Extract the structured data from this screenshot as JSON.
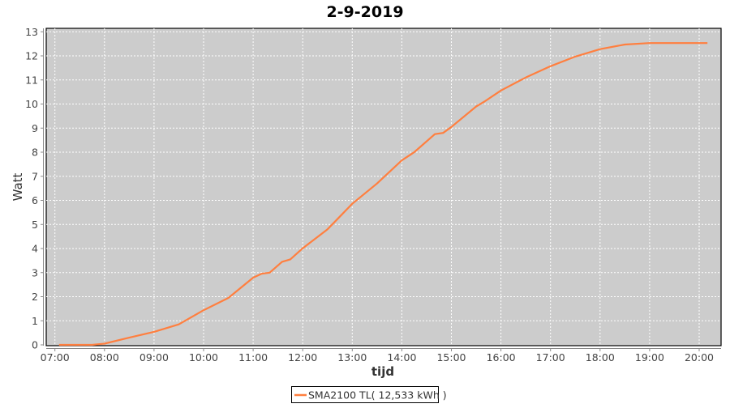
{
  "chart_data": {
    "type": "line",
    "title": "2-9-2019",
    "xlabel": "tijd",
    "ylabel": "Watt",
    "xlim": [
      "06:50",
      "20:25"
    ],
    "ylim": [
      0,
      13.2
    ],
    "x_ticks": [
      "07:00",
      "08:00",
      "09:00",
      "10:00",
      "11:00",
      "12:00",
      "13:00",
      "14:00",
      "15:00",
      "16:00",
      "17:00",
      "18:00",
      "19:00",
      "20:00"
    ],
    "y_ticks": [
      0,
      1,
      2,
      3,
      4,
      5,
      6,
      7,
      8,
      9,
      10,
      11,
      12,
      13
    ],
    "grid": true,
    "legend": "bottom",
    "series": [
      {
        "name": "SMA2100 TL( 12,533 kWh )",
        "color": "#ff7f3f",
        "x": [
          "07:05",
          "07:45",
          "08:00",
          "08:30",
          "09:00",
          "09:30",
          "10:00",
          "10:30",
          "11:00",
          "11:10",
          "11:20",
          "11:35",
          "11:45",
          "12:00",
          "12:30",
          "12:40",
          "13:00",
          "13:30",
          "14:00",
          "14:15",
          "14:40",
          "14:50",
          "15:00",
          "15:30",
          "15:40",
          "16:00",
          "16:30",
          "17:00",
          "17:30",
          "18:00",
          "18:30",
          "19:00",
          "20:10"
        ],
        "values": [
          0,
          0,
          0.05,
          0.3,
          0.54,
          0.85,
          1.44,
          1.95,
          2.79,
          2.95,
          3.0,
          3.45,
          3.55,
          4.01,
          4.8,
          5.15,
          5.86,
          6.7,
          7.66,
          8.0,
          8.75,
          8.8,
          9.05,
          9.9,
          10.1,
          10.56,
          11.1,
          11.57,
          11.97,
          12.28,
          12.47,
          12.53,
          12.53
        ]
      }
    ],
    "colors": {
      "plot_background": "#cccccc",
      "gridline": "#ffffff"
    }
  }
}
